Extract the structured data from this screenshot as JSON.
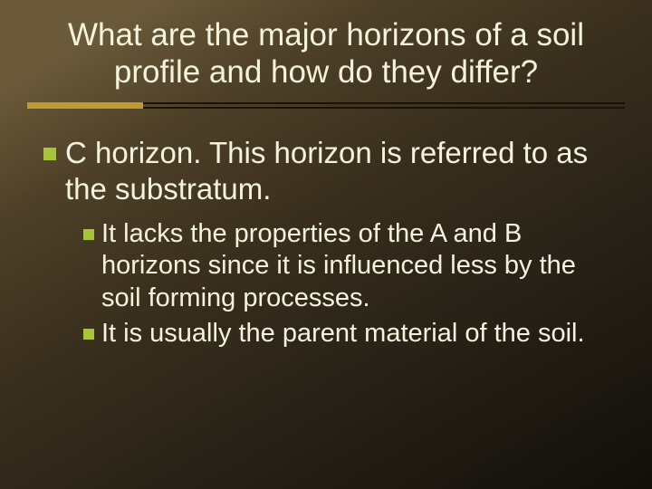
{
  "slide": {
    "title": "What are the major horizons of a soil profile and how do they differ?",
    "background_gradient": [
      "#6b5a3a",
      "#4f4128",
      "#3a2f1e",
      "#2a2318",
      "#1c1810",
      "#120f0a"
    ],
    "text_color": "#f4f3dd",
    "bullet_color": "#a8c43a",
    "divider_line_color": "#1a1308",
    "divider_accent_color": "#c19a33",
    "title_fontsize": 35,
    "l1_fontsize": 33,
    "l2_fontsize": 29,
    "bullets": {
      "l1": [
        {
          "text": "C horizon. This horizon is referred to as the substratum."
        }
      ],
      "l2": [
        {
          "text": "It lacks the properties of the A and B horizons since it is influenced less by the soil forming processes."
        },
        {
          "text": "It is usually the parent material of the soil."
        }
      ]
    }
  }
}
